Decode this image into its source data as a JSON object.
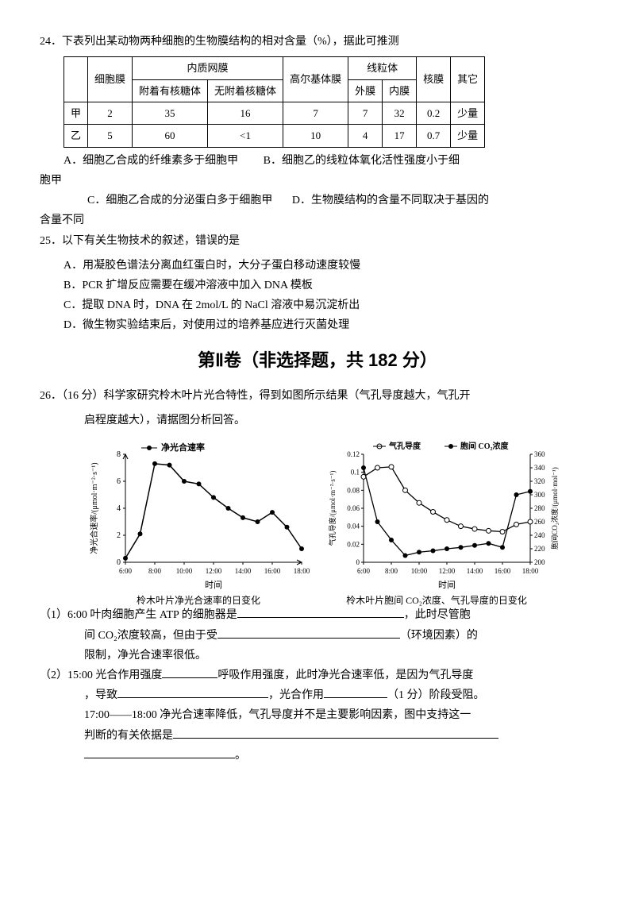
{
  "q24": {
    "stem": "24．下表列出某动物两种细胞的生物膜结构的相对含量（%），据此可推测",
    "table": {
      "head_row1": [
        "",
        "细胞膜",
        "内质网膜",
        "",
        "高尔基体膜",
        "线粒体",
        "",
        "核膜",
        "其它"
      ],
      "head_row2": [
        "",
        "",
        "附着有核糖体",
        "无附着核糖体",
        "",
        "外膜",
        "内膜",
        "",
        ""
      ],
      "rows": [
        [
          "甲",
          "2",
          "35",
          "16",
          "7",
          "7",
          "32",
          "0.2",
          "少量"
        ],
        [
          "乙",
          "5",
          "60",
          "<1",
          "10",
          "4",
          "17",
          "0.7",
          "少量"
        ]
      ]
    },
    "opts": {
      "A": "A．细胞乙合成的纤维素多于细胞甲",
      "B": "B．细胞乙的线粒体氧化活性强度小于细",
      "B_tail": "胞甲",
      "C": "C．细胞乙合成的分泌蛋白多于细胞甲",
      "D": "D．生物膜结构的含量不同取决于基因的",
      "D_tail": "含量不同"
    }
  },
  "q25": {
    "stem": "25．以下有关生物技术的叙述，错误的是",
    "A": "A．用凝胶色谱法分离血红蛋白时，大分子蛋白移动速度较慢",
    "B": "B．PCR 扩增反应需要在缓冲溶液中加入 DNA 模板",
    "C": "C．提取 DNA 时，DNA 在 2mol/L 的 NaCl 溶液中易沉淀析出",
    "D": "D．微生物实验结束后，对使用过的培养基应进行灭菌处理"
  },
  "section2": "第Ⅱ卷（非选择题，共 182 分）",
  "q26": {
    "stem1": "26．（16 分）科学家研究柃木叶片光合特性，得到如图所示结果（气孔导度越大，气孔开",
    "stem2": "启程度越大），请据图分析回答。"
  },
  "chart1": {
    "legend": "净光合速率",
    "y_label": "净光合速率/(μmol·m⁻²·s⁻¹)",
    "x_label": "时间",
    "x_ticks": [
      "6:00",
      "8:00",
      "10:00",
      "12:00",
      "14:00",
      "16:00",
      "18:00"
    ],
    "y_ticks": [
      0,
      2,
      4,
      6,
      8
    ],
    "ylim": [
      0,
      8
    ],
    "points_y": [
      0.3,
      2.1,
      7.3,
      7.2,
      6.0,
      5.8,
      4.8,
      4.0,
      3.3,
      3.0,
      3.7,
      2.6,
      1.0
    ],
    "line_color": "#000000",
    "marker": "filled-circle",
    "caption": "柃木叶片净光合速率的日变化"
  },
  "chart2": {
    "legend1": "气孔导度",
    "legend2": "胞间 CO₂浓度",
    "y1_label": "气孔导度/(μmol·m⁻²·s⁻¹)",
    "y2_label": "胞间CO₂浓度/(μmol·mol⁻¹)",
    "x_label": "时间",
    "x_ticks": [
      "6:00",
      "8:00",
      "10:00",
      "12:00",
      "14:00",
      "16:00",
      "18:00"
    ],
    "y1_ticks": [
      "0",
      "0.02",
      "0.04",
      "0.06",
      "0.08",
      "0.1",
      "0.12"
    ],
    "y1_lim": [
      0,
      0.12
    ],
    "y2_ticks": [
      200,
      220,
      240,
      260,
      280,
      300,
      320,
      340,
      360
    ],
    "y2_lim": [
      200,
      360
    ],
    "series1_y": [
      0.095,
      0.105,
      0.106,
      0.08,
      0.066,
      0.056,
      0.047,
      0.04,
      0.037,
      0.035,
      0.034,
      0.042,
      0.045
    ],
    "series2_y": [
      340,
      260,
      233,
      210,
      215,
      217,
      220,
      222,
      225,
      228,
      222,
      300,
      305
    ],
    "line_color": "#000000",
    "caption": "柃木叶片胞间 CO₂浓度、气孔导度的日变化"
  },
  "sub1": {
    "lead": "（1）6:00 叶肉细胞产生 ATP 的细胞器是",
    "mid1": "，此时尽管胞",
    "line2a": "间 CO₂浓度较高，但由于受",
    "line2b": "（环境因素）的",
    "line3": "限制，净光合速率很低。"
  },
  "sub2": {
    "lead": "（2）15:00 光合作用强度",
    "mid1": "呼吸作用强度，此时净光合速率低，是因为气孔导度",
    "line2a": "，导致",
    "line2b": "，光合作用",
    "line2c": "（1 分）阶段受阻。",
    "line3": "17:00——18:00 净光合速率降低，气孔导度并不是主要影响因素，图中支持这一",
    "line4": "判断的有关依据是",
    "line5": "。"
  }
}
